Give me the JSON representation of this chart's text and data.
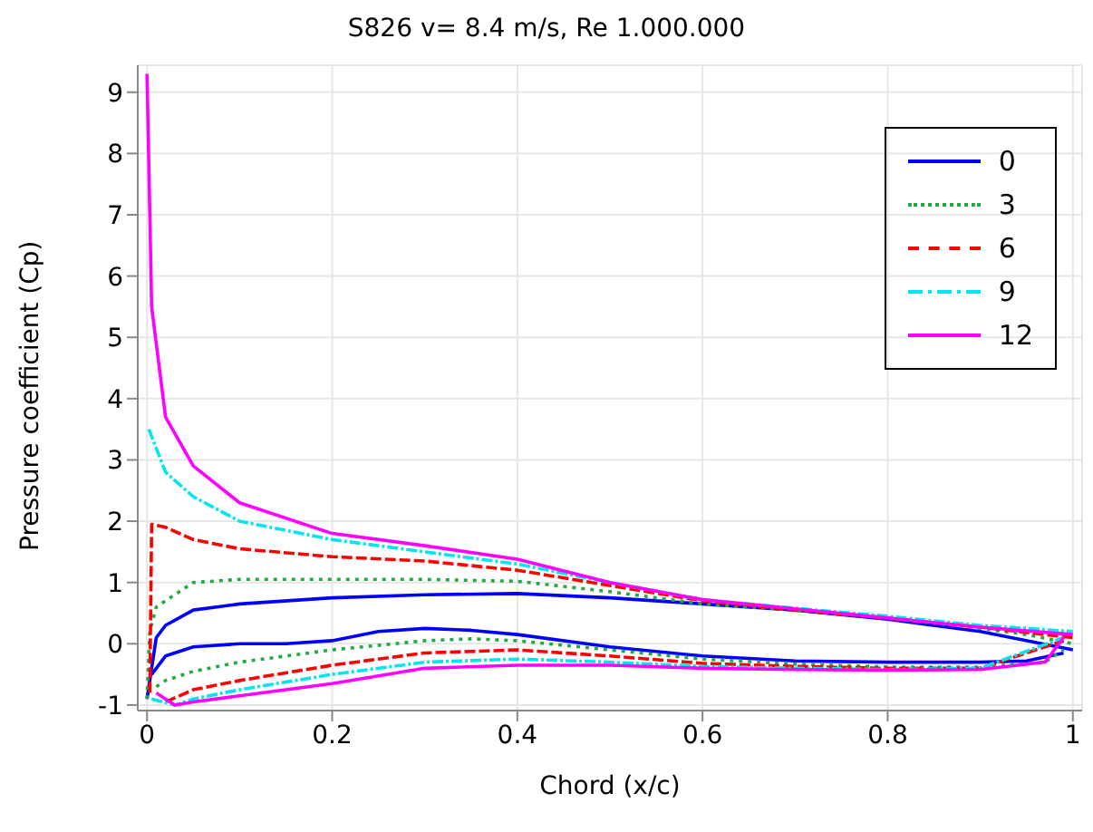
{
  "chart_data": {
    "type": "line",
    "title": "S826 v= 8.4 m/s, Re 1.000.000",
    "xlabel": "Chord (x/c)",
    "ylabel": "Pressure coefficient (Cp)",
    "xlim": [
      -0.01,
      1.01
    ],
    "ylim": [
      -1.09,
      9.44
    ],
    "xticks": [
      0,
      0.2,
      0.4,
      0.6,
      0.8,
      1
    ],
    "yticks": [
      -1,
      0,
      1,
      2,
      3,
      4,
      5,
      6,
      7,
      8,
      9
    ],
    "grid": true,
    "legend": "top right",
    "marker": "none",
    "series": [
      {
        "name": "0",
        "color": "#0000ff",
        "line_style": "solid",
        "x": [
          0,
          0.01,
          0.02,
          0.05,
          0.1,
          0.2,
          0.3,
          0.4,
          0.5,
          0.6,
          0.7,
          0.8,
          0.9,
          1
        ],
        "values": [
          -0.9,
          0.1,
          0.3,
          0.55,
          0.65,
          0.75,
          0.8,
          0.82,
          0.75,
          0.65,
          0.55,
          0.4,
          0.2,
          -0.1
        ]
      },
      {
        "color": "#0000ff",
        "line_style": "solid",
        "x": [
          0.005,
          0.02,
          0.05,
          0.1,
          0.15,
          0.2,
          0.25,
          0.3,
          0.35,
          0.4,
          0.5,
          0.6,
          0.7,
          0.8,
          0.9,
          0.95,
          0.99
        ],
        "values": [
          -0.5,
          -0.2,
          -0.05,
          0,
          0,
          0.05,
          0.2,
          0.25,
          0.22,
          0.15,
          -0.05,
          -0.2,
          -0.28,
          -0.3,
          -0.3,
          -0.28,
          -0.15
        ]
      },
      {
        "name": "3",
        "color": "#22aa44",
        "line_style": "dotted",
        "x": [
          0,
          0.003,
          0.01,
          0.05,
          0.1,
          0.2,
          0.3,
          0.4,
          0.5,
          0.6,
          0.7,
          0.8,
          0.9,
          0.95,
          1
        ],
        "values": [
          -0.9,
          0.2,
          0.6,
          1,
          1.05,
          1.05,
          1.05,
          1.02,
          0.85,
          0.65,
          0.55,
          0.42,
          0.25,
          0.15,
          0
        ]
      },
      {
        "color": "#22aa44",
        "line_style": "dotted",
        "x": [
          0.01,
          0.02,
          0.05,
          0.1,
          0.2,
          0.3,
          0.35,
          0.4,
          0.5,
          0.6,
          0.7,
          0.8,
          0.9,
          0.97,
          0.99
        ],
        "values": [
          -0.7,
          -0.6,
          -0.45,
          -0.3,
          -0.1,
          0.05,
          0.08,
          0.05,
          -0.1,
          -0.25,
          -0.33,
          -0.38,
          -0.38,
          -0.3,
          -0.1
        ]
      },
      {
        "name": "6",
        "color": "#ff0000",
        "line_style": "dashed",
        "x": [
          0.003,
          0.005,
          0.02,
          0.05,
          0.1,
          0.2,
          0.3,
          0.4,
          0.5,
          0.6,
          0.7,
          0.8,
          0.9,
          1
        ],
        "values": [
          -0.8,
          1.95,
          1.9,
          1.7,
          1.55,
          1.42,
          1.35,
          1.2,
          0.95,
          0.7,
          0.55,
          0.42,
          0.27,
          0.1
        ]
      },
      {
        "color": "#ff0000",
        "line_style": "dashed",
        "x": [
          0.02,
          0.05,
          0.1,
          0.2,
          0.3,
          0.4,
          0.5,
          0.6,
          0.7,
          0.8,
          0.9,
          0.99
        ],
        "values": [
          -0.95,
          -0.75,
          -0.6,
          -0.35,
          -0.15,
          -0.1,
          -0.2,
          -0.32,
          -0.37,
          -0.4,
          -0.4,
          0.05
        ]
      },
      {
        "name": "9",
        "color": "#00e5ee",
        "line_style": "dashdot",
        "x": [
          0.002,
          0.02,
          0.05,
          0.1,
          0.2,
          0.3,
          0.4,
          0.5,
          0.6,
          0.7,
          0.8,
          0.9,
          1
        ],
        "values": [
          3.5,
          2.8,
          2.4,
          2,
          1.7,
          1.5,
          1.3,
          1,
          0.72,
          0.58,
          0.45,
          0.3,
          0.2
        ]
      },
      {
        "color": "#00e5ee",
        "line_style": "dashdot",
        "x": [
          0.005,
          0.03,
          0.05,
          0.1,
          0.2,
          0.3,
          0.4,
          0.5,
          0.6,
          0.7,
          0.8,
          0.9,
          0.99
        ],
        "values": [
          -0.9,
          -1,
          -0.9,
          -0.75,
          -0.5,
          -0.3,
          -0.25,
          -0.3,
          -0.37,
          -0.4,
          -0.42,
          -0.4,
          0.1
        ]
      },
      {
        "name": "12",
        "color": "#ff00ff",
        "line_style": "solid",
        "x": [
          0,
          0.005,
          0.02,
          0.05,
          0.1,
          0.2,
          0.3,
          0.4,
          0.5,
          0.6,
          0.7,
          0.8,
          0.9,
          1
        ],
        "values": [
          9.3,
          5.5,
          3.7,
          2.9,
          2.3,
          1.8,
          1.6,
          1.38,
          1,
          0.72,
          0.57,
          0.42,
          0.27,
          0.15
        ]
      },
      {
        "color": "#ff00ff",
        "line_style": "solid",
        "x": [
          0.01,
          0.03,
          0.05,
          0.1,
          0.2,
          0.3,
          0.4,
          0.5,
          0.6,
          0.7,
          0.8,
          0.9,
          0.97,
          0.99
        ],
        "values": [
          -0.8,
          -1,
          -0.95,
          -0.85,
          -0.65,
          -0.4,
          -0.35,
          -0.35,
          -0.4,
          -0.42,
          -0.43,
          -0.42,
          -0.3,
          0.1
        ]
      }
    ]
  }
}
